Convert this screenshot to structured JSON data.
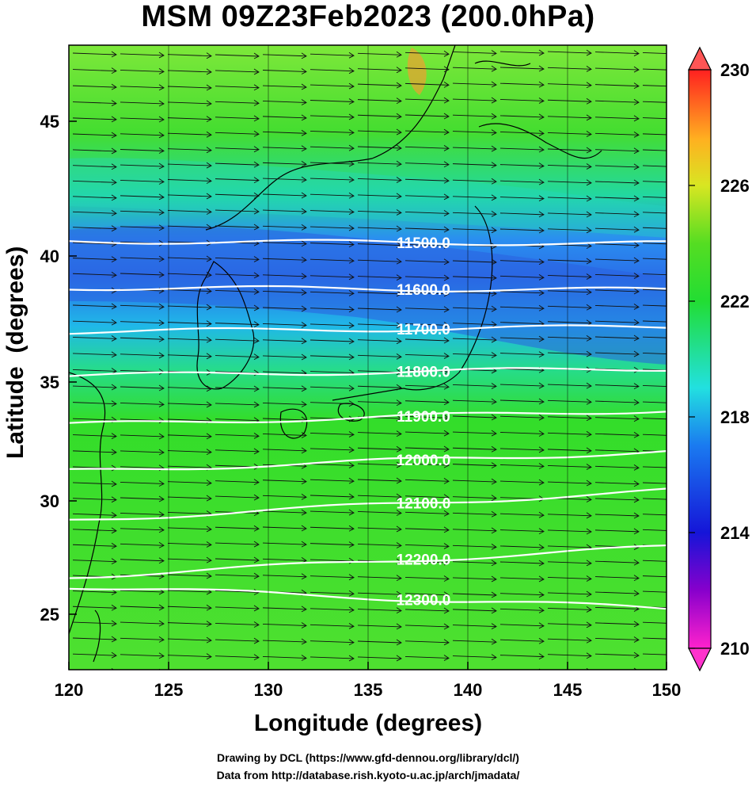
{
  "title": "MSM 09Z23Feb2023 (200.0hPa)",
  "xlabel": "Longitude (degrees)",
  "ylabel": "Latitude  (degrees)",
  "x_ticks": [
    "120",
    "125",
    "130",
    "135",
    "140",
    "145",
    "150"
  ],
  "y_ticks": [
    "25",
    "30",
    "35",
    "40",
    "45"
  ],
  "colorbar_ticks": [
    "210",
    "214",
    "218",
    "222",
    "226",
    "230"
  ],
  "credits": {
    "line1": "Drawing by DCL (https://www.gfd-dennou.org/library/dcl/)",
    "line2": "Data from http://database.rish.kyoto-u.ac.jp/arch/jmadata/"
  },
  "colors": {
    "contour": "#ffffff",
    "wind_arrow": "#000000",
    "coastline": "#000000",
    "colorbar_top": "#ff2a2a",
    "colorbar_bottom": "#ff33cc"
  },
  "chart_data": {
    "type": "map",
    "projection": "lat-lon",
    "xlim": [
      120,
      150
    ],
    "ylim": [
      22.5,
      48
    ],
    "colorbar_range": [
      210,
      230
    ],
    "contours": [
      {
        "label": "11500.0",
        "lat_west": 40.0,
        "lat_east": 39.9
      },
      {
        "label": "11600.0",
        "lat_west": 38.1,
        "lat_east": 38.0
      },
      {
        "label": "11700.0",
        "lat_west": 36.3,
        "lat_east": 36.5
      },
      {
        "label": "11800.0",
        "lat_west": 34.5,
        "lat_east": 34.8
      },
      {
        "label": "11900.0",
        "lat_west": 32.5,
        "lat_east": 33.1
      },
      {
        "label": "12000.0",
        "lat_west": 30.6,
        "lat_east": 31.4
      },
      {
        "label": "12100.0",
        "lat_west": 28.6,
        "lat_east": 29.8
      },
      {
        "label": "12200.0",
        "lat_west": 26.3,
        "lat_east": 27.5
      },
      {
        "label": "12300.0",
        "lat_west": 25.9,
        "lat_east": 25.0
      }
    ],
    "wind_direction": "westerly"
  }
}
